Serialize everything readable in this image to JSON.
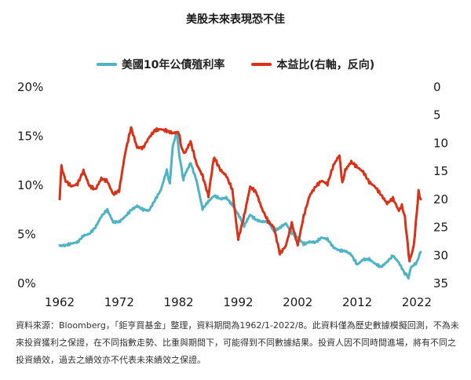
{
  "title": "美股未來表現恐不佳",
  "legend": {
    "series1": "美國10年公債殖利率",
    "series2": "本益比(右軸，反向)"
  },
  "colors": {
    "series1": "#4fb3c4",
    "series2": "#d6331a"
  },
  "note": "資料來源：Bloomberg，「鉅亨買基金」整理，資料期間為1962/1-2022/8。此資料僅為歷史數據模擬回測，不為未來投資獲利之保證，在不同指數走勢、比重與期間下，可能得到不同數據結果。投資人因不同時間進場，將有不同之投資績效，過去之績效亦不代表未來績效之保證。",
  "chart_data": {
    "type": "line",
    "title": "美股未來表現恐不佳",
    "x_ticks": [
      "1962",
      "1972",
      "1982",
      "1992",
      "2002",
      "2012",
      "2022"
    ],
    "xlim": [
      1962,
      2022.67
    ],
    "y_left": {
      "ticks": [
        "0%",
        "5%",
        "10%",
        "15%",
        "20%"
      ],
      "values": [
        0,
        5,
        10,
        15,
        20
      ],
      "range": [
        0,
        20
      ],
      "unit": "%"
    },
    "y_right": {
      "ticks": [
        "0",
        "5",
        "10",
        "15",
        "20",
        "25",
        "30",
        "35"
      ],
      "values": [
        0,
        5,
        10,
        15,
        20,
        25,
        30,
        35
      ],
      "range": [
        0,
        35
      ],
      "inverted": true
    },
    "grid": false,
    "legend_position": "top-center",
    "series": [
      {
        "name": "美國10年公債殖利率",
        "axis": "left",
        "points": [
          [
            1962,
            3.9
          ],
          [
            1963,
            4.0
          ],
          [
            1964,
            4.2
          ],
          [
            1965,
            4.3
          ],
          [
            1966,
            4.9
          ],
          [
            1967,
            5.0
          ],
          [
            1968,
            5.6
          ],
          [
            1969,
            6.7
          ],
          [
            1970,
            7.4
          ],
          [
            1971,
            6.2
          ],
          [
            1972,
            6.3
          ],
          [
            1973,
            6.9
          ],
          [
            1974,
            7.6
          ],
          [
            1975,
            8.0
          ],
          [
            1976,
            7.6
          ],
          [
            1977,
            7.4
          ],
          [
            1978,
            8.4
          ],
          [
            1979,
            9.4
          ],
          [
            1980,
            11.4
          ],
          [
            1980.5,
            10.0
          ],
          [
            1981,
            13.9
          ],
          [
            1981.7,
            15.3
          ],
          [
            1982,
            13.5
          ],
          [
            1982.8,
            10.6
          ],
          [
            1983,
            11.1
          ],
          [
            1984,
            12.4
          ],
          [
            1985,
            10.6
          ],
          [
            1986,
            7.7
          ],
          [
            1987,
            8.4
          ],
          [
            1988,
            8.9
          ],
          [
            1989,
            8.5
          ],
          [
            1990,
            8.6
          ],
          [
            1991,
            7.9
          ],
          [
            1992,
            7.0
          ],
          [
            1993,
            5.9
          ],
          [
            1994,
            7.1
          ],
          [
            1995,
            6.6
          ],
          [
            1996,
            6.4
          ],
          [
            1997,
            6.4
          ],
          [
            1998,
            5.3
          ],
          [
            1999,
            5.6
          ],
          [
            2000,
            6.0
          ],
          [
            2001,
            5.0
          ],
          [
            2002,
            4.6
          ],
          [
            2003,
            4.0
          ],
          [
            2004,
            4.3
          ],
          [
            2005,
            4.3
          ],
          [
            2006,
            4.8
          ],
          [
            2007,
            4.6
          ],
          [
            2008,
            3.7
          ],
          [
            2009,
            3.3
          ],
          [
            2010,
            3.2
          ],
          [
            2011,
            2.8
          ],
          [
            2012,
            1.8
          ],
          [
            2013,
            2.4
          ],
          [
            2014,
            2.5
          ],
          [
            2015,
            2.1
          ],
          [
            2016,
            1.8
          ],
          [
            2017,
            2.3
          ],
          [
            2018,
            2.9
          ],
          [
            2019,
            2.1
          ],
          [
            2020,
            0.9
          ],
          [
            2020.6,
            0.6
          ],
          [
            2021,
            1.5
          ],
          [
            2022,
            2.0
          ],
          [
            2022.67,
            3.2
          ]
        ]
      },
      {
        "name": "本益比(右軸，反向)",
        "axis": "right",
        "points": [
          [
            1962,
            20
          ],
          [
            1962.3,
            14.5
          ],
          [
            1963,
            17
          ],
          [
            1964,
            18
          ],
          [
            1965,
            17.5
          ],
          [
            1966,
            15
          ],
          [
            1967,
            17.5
          ],
          [
            1968,
            18
          ],
          [
            1969,
            16
          ],
          [
            1970,
            16.5
          ],
          [
            1971,
            19
          ],
          [
            1972,
            18.5
          ],
          [
            1973,
            12
          ],
          [
            1974,
            7.5
          ],
          [
            1975,
            11
          ],
          [
            1976,
            11
          ],
          [
            1977,
            9
          ],
          [
            1978,
            7.5
          ],
          [
            1979,
            7.2
          ],
          [
            1980,
            7.5
          ],
          [
            1981,
            8
          ],
          [
            1982,
            8
          ],
          [
            1982.5,
            11
          ],
          [
            1983,
            12
          ],
          [
            1984,
            10
          ],
          [
            1985,
            14
          ],
          [
            1986,
            16
          ],
          [
            1987,
            19.5
          ],
          [
            1987.9,
            13
          ],
          [
            1988,
            12.5
          ],
          [
            1989,
            14.5
          ],
          [
            1990,
            15.5
          ],
          [
            1991,
            18
          ],
          [
            1992,
            27
          ],
          [
            1993,
            23
          ],
          [
            1994,
            18
          ],
          [
            1995,
            19
          ],
          [
            1996,
            22
          ],
          [
            1997,
            24
          ],
          [
            1998,
            25
          ],
          [
            1999,
            29.5
          ],
          [
            2000,
            28
          ],
          [
            2001,
            24
          ],
          [
            2002,
            28
          ],
          [
            2003,
            23
          ],
          [
            2004,
            19.5
          ],
          [
            2005,
            18
          ],
          [
            2006,
            17
          ],
          [
            2007,
            17.5
          ],
          [
            2008,
            14
          ],
          [
            2009,
            12
          ],
          [
            2009.5,
            17
          ],
          [
            2010,
            14.5
          ],
          [
            2011,
            13
          ],
          [
            2012,
            14
          ],
          [
            2013,
            15
          ],
          [
            2014,
            17
          ],
          [
            2015,
            18
          ],
          [
            2016,
            19.5
          ],
          [
            2017,
            21
          ],
          [
            2018,
            20
          ],
          [
            2019,
            22
          ],
          [
            2019.5,
            21
          ],
          [
            2020,
            23
          ],
          [
            2020.8,
            31
          ],
          [
            2021,
            30
          ],
          [
            2021.5,
            28
          ],
          [
            2022,
            22
          ],
          [
            2022.3,
            18.5
          ],
          [
            2022.67,
            20
          ]
        ]
      }
    ]
  }
}
